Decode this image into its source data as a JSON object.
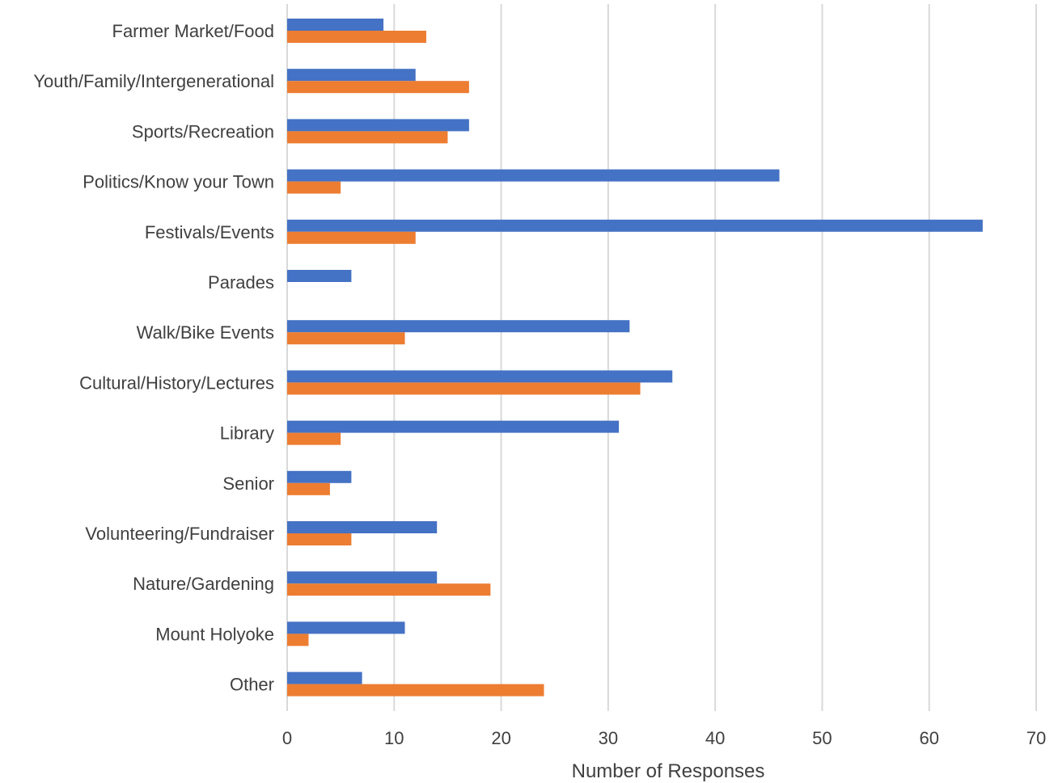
{
  "chart_data": {
    "type": "bar",
    "orientation": "horizontal",
    "categories": [
      "Farmer Market/Food",
      "Youth/Family/Intergenerational",
      "Sports/Recreation",
      "Politics/Know your Town",
      "Festivals/Events",
      "Parades",
      "Walk/Bike Events",
      "Cultural/History/Lectures",
      "Library",
      "Senior",
      "Volunteering/Fundraiser",
      "Nature/Gardening",
      "Mount Holyoke",
      "Other"
    ],
    "series": [
      {
        "color": "#4472C4",
        "values": [
          9,
          12,
          17,
          46,
          65,
          6,
          32,
          36,
          31,
          6,
          14,
          14,
          11,
          7
        ]
      },
      {
        "color": "#ED7D31",
        "values": [
          13,
          17,
          15,
          5,
          12,
          0,
          11,
          33,
          5,
          4,
          6,
          19,
          2,
          24
        ]
      }
    ],
    "xlabel": "Number of Responses",
    "ylabel": "",
    "title": "",
    "xlim": [
      0,
      70
    ],
    "xticks": [
      0,
      10,
      20,
      30,
      40,
      50,
      60,
      70
    ],
    "grid": "vertical",
    "legend": "none"
  }
}
